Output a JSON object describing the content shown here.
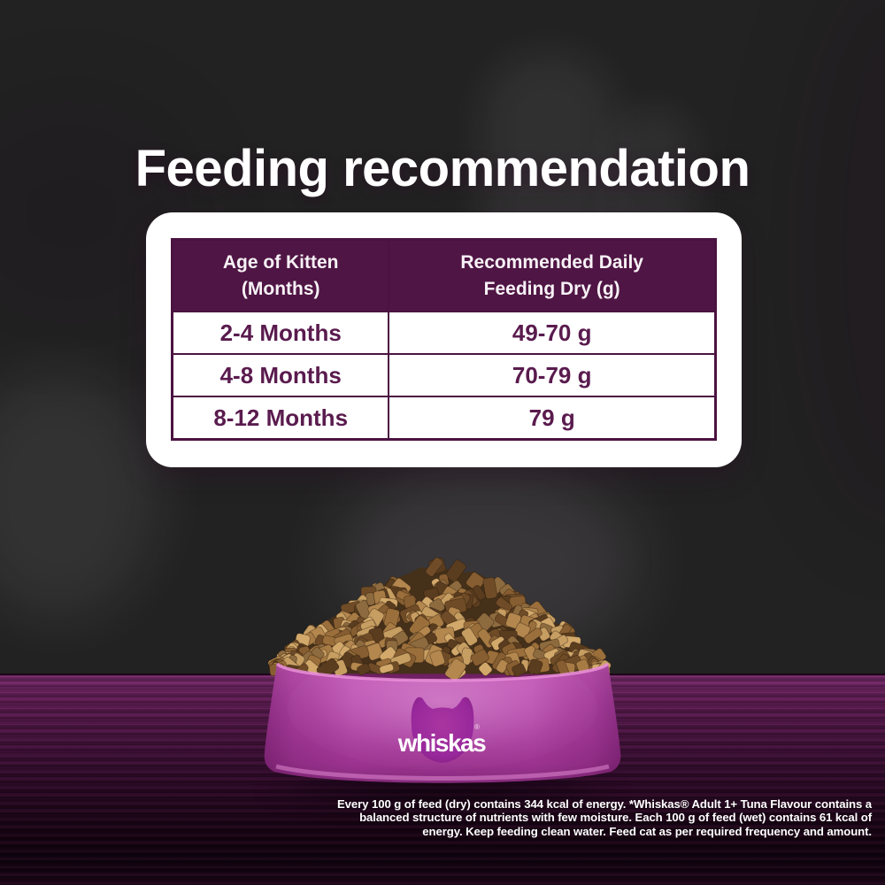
{
  "page": {
    "title": "Feeding recommendation"
  },
  "table": {
    "col1_header": {
      "line1": "Age of Kitten",
      "line2": "(Months)"
    },
    "col2_header": {
      "line1": "Recommended Daily",
      "line2": "Feeding Dry (g)"
    },
    "rows": [
      {
        "age": "2-4 Months",
        "amount": "49-70 g"
      },
      {
        "age": "4-8 Months",
        "amount": "70-79 g"
      },
      {
        "age": "8-12 Months",
        "amount": "79 g"
      }
    ]
  },
  "bowl": {
    "brand": "whiskas",
    "trademark": "®",
    "icon": "cat-head-icon"
  },
  "disclaimer": {
    "lines": [
      "Every 100 g of feed (dry) contains 344 kcal of energy. *Whiskas® Adult 1+ Tuna Flavour contains a",
      "balanced structure of nutrients with few moisture. Each 100 g of feed (wet) contains 61 kcal of",
      "energy. Keep feeding clean water. Feed cat as per required frequency and amount."
    ]
  },
  "colors": {
    "wall_purple": "#974b86",
    "header_bg": "#4f1544",
    "table_border": "#4b1341",
    "table_text": "#5a1b4e",
    "card_bg": "#ffffff",
    "bowl_purple": "#b747ab",
    "cat_head_purple": "#97289b",
    "text_light": "#ffffff",
    "wood_dark": "#2c0a26"
  }
}
